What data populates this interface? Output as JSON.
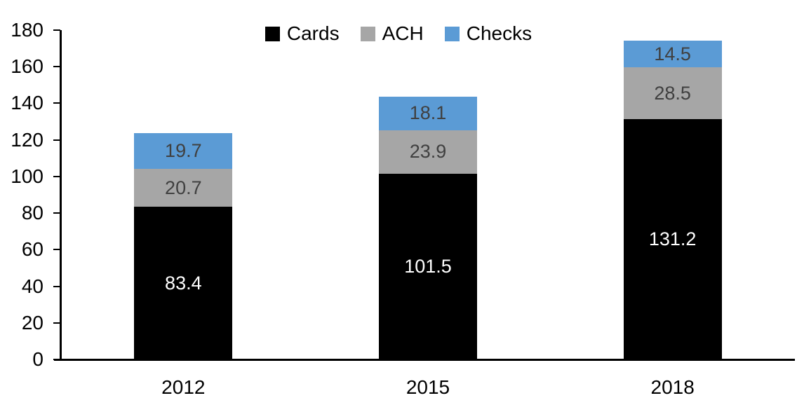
{
  "chart_data": {
    "type": "bar",
    "stacked": true,
    "title": "",
    "xlabel": "",
    "ylabel": "",
    "categories": [
      "2012",
      "2015",
      "2018"
    ],
    "series": [
      {
        "name": "Cards",
        "color": "#000000",
        "label_color": "#ffffff",
        "values": [
          83.4,
          101.5,
          131.2
        ]
      },
      {
        "name": "ACH",
        "color": "#a6a6a6",
        "label_color": "#404040",
        "values": [
          20.7,
          23.9,
          28.5
        ]
      },
      {
        "name": "Checks",
        "color": "#5b9bd5",
        "label_color": "#404040",
        "values": [
          19.7,
          18.1,
          14.5
        ]
      }
    ],
    "ylim": [
      0,
      180
    ],
    "yticks": [
      0,
      20,
      40,
      60,
      80,
      100,
      120,
      140,
      160,
      180
    ],
    "grid": false,
    "legend_position": "top-center",
    "axis_color": "#000000"
  }
}
